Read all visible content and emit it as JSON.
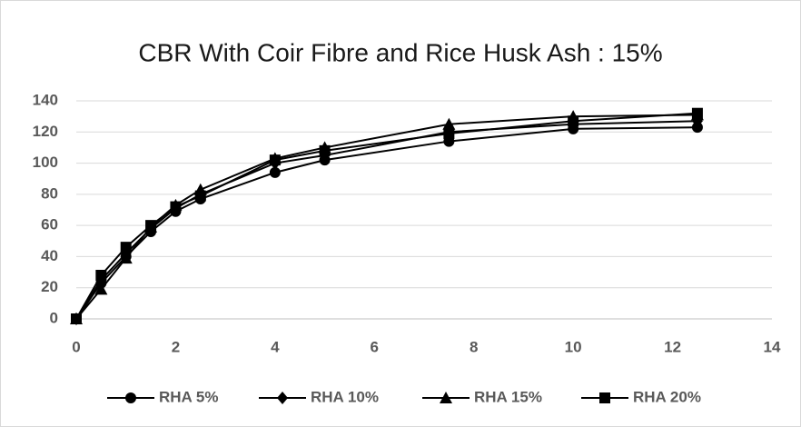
{
  "chart_data": {
    "type": "line",
    "title": "CBR With Coir Fibre and Rice Husk Ash : 15%",
    "x": [
      0,
      0.5,
      1,
      1.5,
      2,
      2.5,
      4,
      5,
      7.5,
      10,
      12.5
    ],
    "series": [
      {
        "name": "RHA 5%",
        "color": "#000000",
        "marker": "circle",
        "values": [
          0,
          23,
          40,
          56,
          69,
          77,
          94,
          102,
          114,
          122,
          123
        ]
      },
      {
        "name": "RHA 10%",
        "color": "#000000",
        "marker": "diamond",
        "values": [
          0,
          25,
          42,
          58,
          71,
          80,
          100,
          105,
          120,
          125,
          127
        ]
      },
      {
        "name": "RHA 15%",
        "color": "#000000",
        "marker": "triangle",
        "values": [
          0,
          19,
          39,
          59,
          73,
          83,
          103,
          110,
          125,
          130,
          131
        ]
      },
      {
        "name": "RHA 20%",
        "color": "#000000",
        "marker": "square",
        "values": [
          0,
          28,
          46,
          60,
          72,
          79,
          102,
          108,
          119,
          127,
          132
        ]
      }
    ],
    "xlim": [
      0,
      14
    ],
    "xticks": [
      0,
      2,
      4,
      6,
      8,
      10,
      12,
      14
    ],
    "ylim": [
      0,
      140
    ],
    "yticks": [
      0,
      20,
      40,
      60,
      80,
      100,
      120,
      140
    ],
    "grid": true,
    "legend": "bottom"
  }
}
